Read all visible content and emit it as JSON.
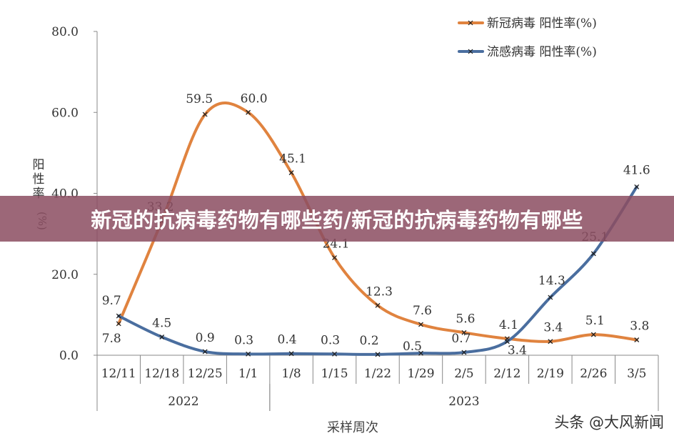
{
  "chart_data": {
    "type": "line",
    "ylabel": "阳性率(%)",
    "xlabel": "采样周次",
    "ylim": [
      0,
      80
    ],
    "yticks": [
      "0.0",
      "20.0",
      "40.0",
      "60.0",
      "80.0"
    ],
    "categories": [
      "12/11",
      "12/18",
      "12/25",
      "1/1",
      "1/8",
      "1/15",
      "1/22",
      "1/29",
      "2/5",
      "2/12",
      "2/19",
      "2/26",
      "3/5"
    ],
    "year_groups": [
      {
        "label": "2022",
        "start": 0,
        "end": 3
      },
      {
        "label": "2023",
        "start": 4,
        "end": 12
      }
    ],
    "series": [
      {
        "name": "新冠病毒 阳性率(%)",
        "color": "#E0833F",
        "values": [
          7.8,
          33.2,
          59.5,
          60.0,
          45.1,
          24.1,
          12.3,
          7.6,
          5.6,
          4.1,
          3.4,
          5.1,
          3.8
        ]
      },
      {
        "name": "流感病毒 阳性率(%)",
        "color": "#4A6E9F",
        "values": [
          9.7,
          4.5,
          0.9,
          0.3,
          0.4,
          0.3,
          0.2,
          0.5,
          0.7,
          3.4,
          14.3,
          25.1,
          41.6
        ]
      }
    ],
    "legend_position": "top-right",
    "grid": false
  },
  "banner_title": "新冠的抗病毒药物有哪些药/新冠的抗病毒药物有哪些",
  "watermark": "头条 @大风新闻"
}
